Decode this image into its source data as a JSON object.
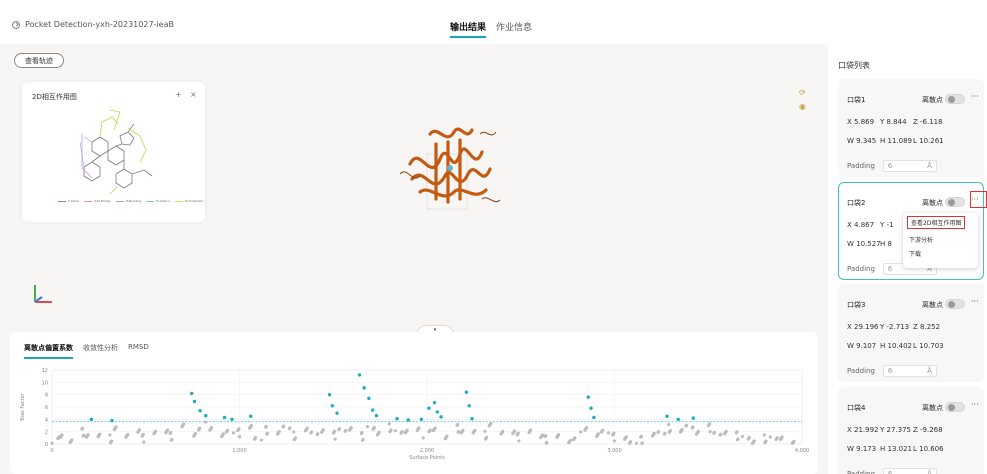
{
  "header": {
    "project_name": "Pocket Detection-yxh-20231027-ieaB",
    "tabs": [
      {
        "label": "输出结果",
        "active": true
      },
      {
        "label": "作业信息",
        "active": false
      }
    ]
  },
  "toolbar": {
    "track_label": "查看轨迹"
  },
  "panel_2d": {
    "title": "2D相互作用图",
    "move_icon": "+",
    "close_icon": "×",
    "legend": [
      {
        "label": "π-Stack",
        "color": "#8a7fd6"
      },
      {
        "label": "Salt Bridge",
        "color": "#e58bd1"
      },
      {
        "label": "H-Bonding",
        "color": "#7fb0e6"
      },
      {
        "label": "Pi-Cation",
        "color": "#7bd1a2"
      },
      {
        "label": "Hydrophobic",
        "color": "#d9d955"
      }
    ]
  },
  "viewer": {
    "reset_icon": "refresh-icon",
    "center_icon": "target-icon"
  },
  "bottom_tabs": [
    {
      "label": "离散点偏置系数",
      "active": true
    },
    {
      "label": "收敛性分析",
      "active": false
    },
    {
      "label": "RMSD",
      "active": false
    }
  ],
  "chart_data": {
    "type": "scatter",
    "ylabel": "Bias Factor",
    "xlabel": "Surface Points",
    "xlim": [
      0,
      4000
    ],
    "ylim": [
      0,
      12
    ],
    "xticks": [
      "0",
      "1,000",
      "2,000",
      "3,000",
      "4,000"
    ],
    "yticks": [
      "0",
      "2",
      "4",
      "6",
      "8",
      "10",
      "12"
    ],
    "threshold": 3.6,
    "series": [
      {
        "color": "#bdbdbd",
        "values": [
          [
            20,
            0.6
          ],
          [
            60,
            1.2
          ],
          [
            100,
            0.8
          ],
          [
            150,
            2.0
          ],
          [
            200,
            1.1
          ],
          [
            250,
            1.6
          ],
          [
            300,
            0.9
          ],
          [
            350,
            2.2
          ],
          [
            400,
            1.4
          ],
          [
            450,
            2.6
          ],
          [
            500,
            1.0
          ],
          [
            550,
            1.8
          ],
          [
            600,
            2.4
          ],
          [
            650,
            1.3
          ],
          [
            700,
            2.8
          ],
          [
            750,
            1.7
          ],
          [
            800,
            3.0
          ],
          [
            850,
            2.1
          ],
          [
            900,
            1.5
          ],
          [
            950,
            2.5
          ],
          [
            1000,
            1.9
          ],
          [
            1050,
            2.7
          ],
          [
            1100,
            1.2
          ],
          [
            1150,
            2.3
          ],
          [
            1200,
            1.6
          ],
          [
            1250,
            2.9
          ],
          [
            1300,
            1.4
          ],
          [
            1350,
            2.0
          ],
          [
            1400,
            1.8
          ],
          [
            1450,
            2.6
          ],
          [
            1500,
            1.5
          ],
          [
            1550,
            2.2
          ],
          [
            1600,
            2.8
          ],
          [
            1650,
            1.3
          ],
          [
            1700,
            2.4
          ],
          [
            1750,
            1.9
          ],
          [
            1800,
            2.7
          ],
          [
            1850,
            1.6
          ],
          [
            1900,
            2.1
          ],
          [
            1950,
            2.9
          ],
          [
            2000,
            1.7
          ],
          [
            2050,
            2.3
          ],
          [
            2100,
            1.4
          ],
          [
            2150,
            2.6
          ],
          [
            2200,
            1.8
          ],
          [
            2250,
            2.2
          ],
          [
            2300,
            1.5
          ],
          [
            2350,
            2.8
          ],
          [
            2400,
            1.9
          ],
          [
            2450,
            2.4
          ],
          [
            2500,
            1.2
          ],
          [
            2550,
            2.0
          ],
          [
            2600,
            1.6
          ],
          [
            2650,
            0.8
          ],
          [
            2700,
            1.1
          ],
          [
            2750,
            0.6
          ],
          [
            2800,
            1.4
          ],
          [
            2850,
            2.1
          ],
          [
            2900,
            1.5
          ],
          [
            2950,
            2.5
          ],
          [
            3000,
            1.2
          ],
          [
            3050,
            0.9
          ],
          [
            3100,
            0.5
          ],
          [
            3150,
            0.7
          ],
          [
            3200,
            1.3
          ],
          [
            3250,
            2.0
          ],
          [
            3300,
            2.6
          ],
          [
            3350,
            1.8
          ],
          [
            3400,
            2.9
          ],
          [
            3450,
            2.3
          ],
          [
            3500,
            2.7
          ],
          [
            3550,
            1.6
          ],
          [
            3600,
            2.2
          ],
          [
            3650,
            1.4
          ],
          [
            3700,
            0.8
          ],
          [
            3750,
            0.5
          ],
          [
            3800,
            0.9
          ],
          [
            3850,
            0.6
          ],
          [
            3900,
            1.0
          ],
          [
            3950,
            0.7
          ]
        ]
      },
      {
        "color": "#1aaec0",
        "values": [
          [
            210,
            4.0
          ],
          [
            320,
            3.8
          ],
          [
            745,
            8.2
          ],
          [
            760,
            6.9
          ],
          [
            790,
            5.4
          ],
          [
            820,
            4.6
          ],
          [
            920,
            4.3
          ],
          [
            960,
            4.0
          ],
          [
            1060,
            4.5
          ],
          [
            1480,
            8.0
          ],
          [
            1495,
            6.2
          ],
          [
            1520,
            5.0
          ],
          [
            1640,
            11.2
          ],
          [
            1665,
            9.1
          ],
          [
            1690,
            7.4
          ],
          [
            1710,
            5.5
          ],
          [
            1730,
            4.6
          ],
          [
            1840,
            4.1
          ],
          [
            1900,
            3.9
          ],
          [
            1970,
            4.0
          ],
          [
            2010,
            5.8
          ],
          [
            2040,
            6.7
          ],
          [
            2055,
            5.2
          ],
          [
            2075,
            4.4
          ],
          [
            2210,
            8.4
          ],
          [
            2225,
            6.2
          ],
          [
            2240,
            4.1
          ],
          [
            2860,
            7.6
          ],
          [
            2875,
            5.8
          ],
          [
            2890,
            4.3
          ],
          [
            3280,
            4.5
          ],
          [
            3340,
            4.0
          ],
          [
            3420,
            4.2
          ]
        ]
      }
    ]
  },
  "pocket_list": {
    "title": "口袋列表",
    "toggle_label": "离散点",
    "padding_label": "Padding",
    "padding_unit": "Å",
    "items": [
      {
        "name": "口袋1",
        "x": "X 5.869",
        "y": "Y 8.844",
        "z": "Z -6.118",
        "w": "W 9.345",
        "h": "H 11.089",
        "l": "L 10.261",
        "padding": "6"
      },
      {
        "name": "口袋2",
        "x": "X 4.867",
        "y": "Y -1",
        "z": "",
        "w": "W 10.527",
        "h": "H 8",
        "l": "",
        "padding": "6"
      },
      {
        "name": "口袋3",
        "x": "X 29.196",
        "y": "Y -2.713",
        "z": "Z 8.252",
        "w": "W 9.107",
        "h": "H 10.402",
        "l": "L 10.703",
        "padding": "6"
      },
      {
        "name": "口袋4",
        "x": "X 21.992",
        "y": "Y 27.375",
        "z": "Z -9.268",
        "w": "W 9.173",
        "h": "H 13.021",
        "l": "L 10.606",
        "padding": "6"
      }
    ]
  },
  "context_menu": {
    "items": [
      "查看2D相互作用图",
      "下游分析",
      "下载"
    ]
  },
  "colors": {
    "accent": "#1aa6b8",
    "protein": "#c55a11",
    "highlight_border": "#dd3333"
  }
}
